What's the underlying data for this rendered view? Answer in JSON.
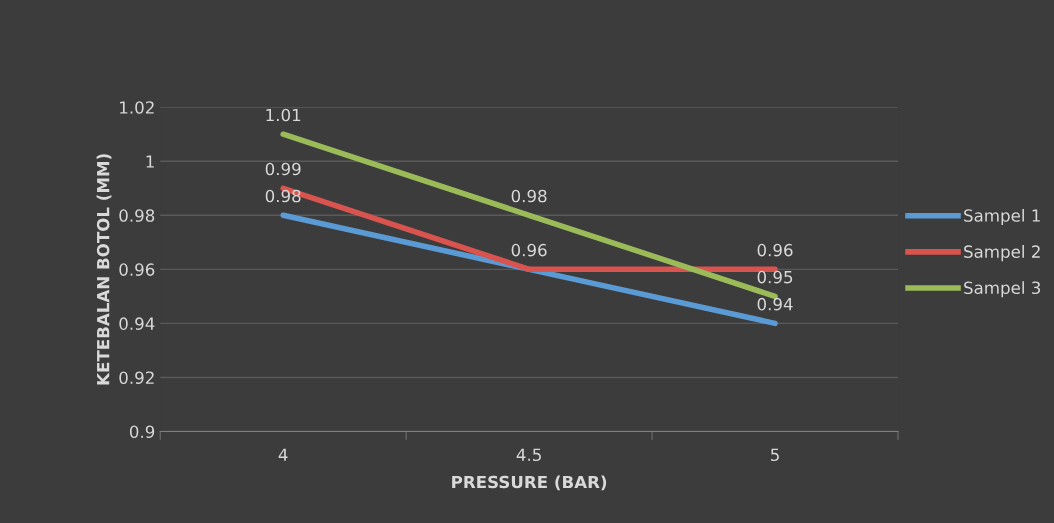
{
  "chart_data": {
    "type": "line",
    "xlabel": "PRESSURE (BAR)",
    "ylabel": "KETEBALAN BOTOL (MM)",
    "categories": [
      "4",
      "4.5",
      "5"
    ],
    "series": [
      {
        "name": "Sampel 1",
        "color": "#5b9bd5",
        "values": [
          0.98,
          0.96,
          0.94
        ],
        "value_labels": [
          "0.98",
          "0.96",
          "0.94"
        ]
      },
      {
        "name": "Sampel 2",
        "color": "#d9534f",
        "values": [
          0.99,
          0.96,
          0.96
        ],
        "value_labels": [
          "0.99",
          null,
          "0.96"
        ]
      },
      {
        "name": "Sampel 3",
        "color": "#9bbb59",
        "values": [
          1.01,
          0.98,
          0.95
        ],
        "value_labels": [
          "1.01",
          "0.98",
          "0.95"
        ]
      }
    ],
    "ylim": [
      0.9,
      1.02
    ],
    "yticks": [
      0.9,
      0.92,
      0.94,
      0.96,
      0.98,
      1,
      1.02
    ],
    "grid": "y",
    "legend": "right",
    "marker": "none",
    "line_style": "solid"
  }
}
